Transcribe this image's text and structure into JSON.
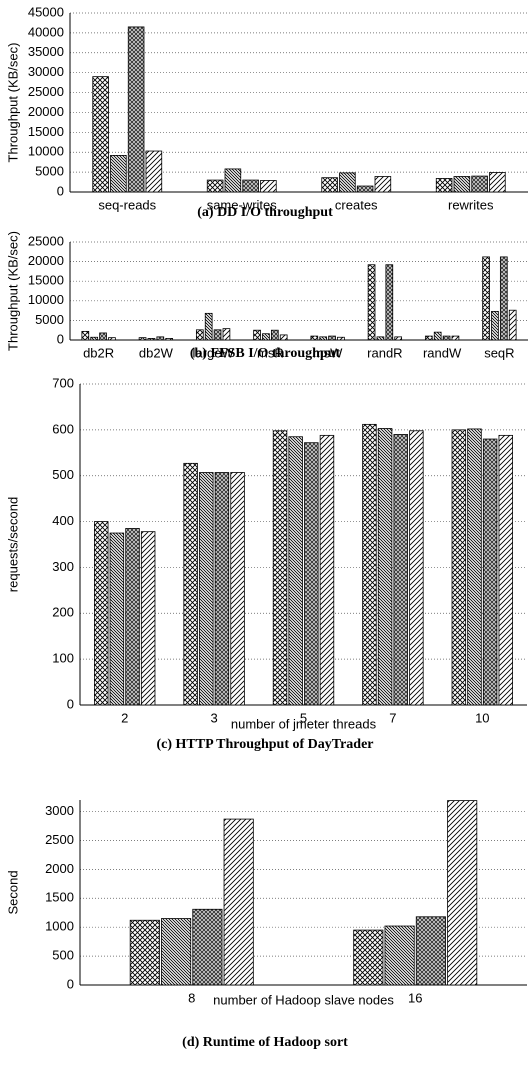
{
  "chart_data": [
    {
      "type": "bar",
      "title": "(a) DD I/O throughput",
      "y_label": "Throughput (KB/sec)",
      "categories": [
        "seq-reads",
        "same-writes",
        "creates",
        "rewrites"
      ],
      "series": [
        {
          "pattern": "crosshatch",
          "color": "#000000",
          "values": [
            29000,
            3000,
            3600,
            3400
          ]
        },
        {
          "pattern": "backslash",
          "color": "#000000",
          "values": [
            9200,
            5800,
            4800,
            3900
          ]
        },
        {
          "pattern": "dense",
          "color": "#000000",
          "values": [
            41500,
            3000,
            1500,
            4000
          ]
        },
        {
          "pattern": "slash",
          "color": "#000000",
          "values": [
            10300,
            2900,
            3900,
            4900
          ]
        }
      ],
      "ylim": [
        0,
        45000
      ],
      "yticks": [
        0,
        5000,
        10000,
        15000,
        20000,
        25000,
        30000,
        35000,
        40000,
        45000
      ],
      "grid": true
    },
    {
      "type": "bar",
      "title": "(b) FFSB I/O throughput",
      "y_label": "Throughput (KB/sec)",
      "categories": [
        "db2R",
        "db2W",
        "largeW",
        "msR",
        "msW",
        "randR",
        "randW",
        "seqR"
      ],
      "series": [
        {
          "pattern": "crosshatch",
          "color": "#000000",
          "values": [
            2200,
            600,
            2600,
            2500,
            1000,
            19200,
            1000,
            21200
          ]
        },
        {
          "pattern": "backslash",
          "color": "#000000",
          "values": [
            700,
            400,
            6800,
            1600,
            800,
            800,
            2000,
            7300
          ]
        },
        {
          "pattern": "dense",
          "color": "#000000",
          "values": [
            1800,
            800,
            2600,
            2500,
            1000,
            19200,
            1000,
            21200
          ]
        },
        {
          "pattern": "slash",
          "color": "#000000",
          "values": [
            600,
            400,
            2900,
            1300,
            700,
            800,
            1000,
            7600
          ]
        }
      ],
      "ylim": [
        0,
        25000
      ],
      "yticks": [
        0,
        5000,
        10000,
        15000,
        20000,
        25000
      ],
      "grid": true
    },
    {
      "type": "bar",
      "title": "(c) HTTP Throughput of DayTrader",
      "y_label": "requests/second",
      "x_label": "number of jmeter threads",
      "categories": [
        "2",
        "3",
        "5",
        "7",
        "10"
      ],
      "series": [
        {
          "pattern": "crosshatch",
          "color": "#000000",
          "values": [
            400,
            527,
            598,
            612,
            600
          ]
        },
        {
          "pattern": "backslash",
          "color": "#000000",
          "values": [
            375,
            507,
            585,
            603,
            602
          ]
        },
        {
          "pattern": "dense",
          "color": "#000000",
          "values": [
            385,
            507,
            572,
            590,
            580
          ]
        },
        {
          "pattern": "slash",
          "color": "#000000",
          "values": [
            378,
            507,
            588,
            598,
            588
          ]
        }
      ],
      "ylim": [
        0,
        700
      ],
      "yticks": [
        0,
        100,
        200,
        300,
        400,
        500,
        600,
        700
      ],
      "grid": true
    },
    {
      "type": "bar",
      "title": "(d) Runtime of Hadoop sort",
      "y_label": "Second",
      "x_label": "number of Hadoop slave nodes",
      "categories": [
        "8",
        "16"
      ],
      "series": [
        {
          "pattern": "crosshatch",
          "color": "#000000",
          "values": [
            1120,
            950
          ]
        },
        {
          "pattern": "backslash",
          "color": "#000000",
          "values": [
            1150,
            1020
          ]
        },
        {
          "pattern": "dense",
          "color": "#000000",
          "values": [
            1310,
            1180
          ]
        },
        {
          "pattern": "slash",
          "color": "#000000",
          "values": [
            2870,
            3190
          ]
        }
      ],
      "ylim": [
        0,
        3200
      ],
      "yticks": [
        0,
        500,
        1000,
        1500,
        2000,
        2500,
        3000
      ],
      "grid": true
    }
  ]
}
